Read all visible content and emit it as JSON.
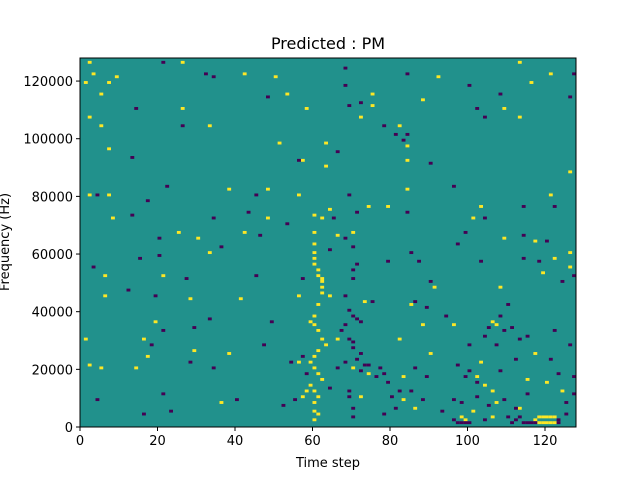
{
  "chart_data": {
    "type": "heatmap",
    "title": "Predicted : PM",
    "xlabel": "Time step",
    "ylabel": "Frequency (Hz)",
    "xlim": [
      0,
      128
    ],
    "ylim": [
      0,
      128000
    ],
    "x_ticks": [
      0,
      20,
      40,
      60,
      80,
      100,
      120
    ],
    "y_ticks": [
      0,
      20000,
      40000,
      60000,
      80000,
      100000,
      120000
    ],
    "x_tick_labels": [
      "0",
      "20",
      "40",
      "60",
      "80",
      "100",
      "120"
    ],
    "y_tick_labels": [
      "0",
      "20000",
      "40000",
      "60000",
      "80000",
      "100000",
      "120000"
    ],
    "grid": false,
    "colors": {
      "background": "#21918c",
      "high": "#fde725",
      "low": "#440154"
    },
    "cell_size": [
      1,
      1000
    ],
    "cells_high": [
      [
        2,
        126000
      ],
      [
        3,
        122000
      ],
      [
        9,
        121000
      ],
      [
        26,
        126000
      ],
      [
        42,
        122000
      ],
      [
        50,
        121000
      ],
      [
        92,
        121000
      ],
      [
        113,
        126000
      ],
      [
        121,
        122000
      ],
      [
        1,
        119000
      ],
      [
        7,
        119000
      ],
      [
        116,
        119000
      ],
      [
        5,
        115000
      ],
      [
        53,
        115000
      ],
      [
        75,
        115000
      ],
      [
        26,
        110000
      ],
      [
        58,
        110000
      ],
      [
        75,
        111000
      ],
      [
        88,
        113000
      ],
      [
        109,
        110000
      ],
      [
        2,
        107000
      ],
      [
        5,
        104000
      ],
      [
        33,
        104000
      ],
      [
        72,
        107000
      ],
      [
        82,
        104000
      ],
      [
        113,
        107000
      ],
      [
        7,
        96000
      ],
      [
        51,
        98000
      ],
      [
        63,
        98000
      ],
      [
        84,
        97000
      ],
      [
        84,
        92000
      ],
      [
        57,
        92000
      ],
      [
        63,
        90000
      ],
      [
        126,
        88000
      ],
      [
        2,
        80000
      ],
      [
        7,
        80000
      ],
      [
        38,
        82000
      ],
      [
        48,
        82000
      ],
      [
        84,
        82000
      ],
      [
        56,
        80000
      ],
      [
        74,
        76000
      ],
      [
        79,
        76000
      ],
      [
        103,
        76000
      ],
      [
        121,
        80000
      ],
      [
        8,
        72000
      ],
      [
        48,
        72000
      ],
      [
        60,
        73000
      ],
      [
        62,
        72000
      ],
      [
        64,
        75000
      ],
      [
        101,
        72000
      ],
      [
        25,
        67000
      ],
      [
        30,
        65000
      ],
      [
        42,
        67000
      ],
      [
        60,
        67000
      ],
      [
        60,
        63000
      ],
      [
        60,
        60000
      ],
      [
        60,
        58000
      ],
      [
        66,
        66000
      ],
      [
        70,
        67000
      ],
      [
        109,
        65000
      ],
      [
        117,
        64000
      ],
      [
        33,
        60000
      ],
      [
        60,
        56000
      ],
      [
        62,
        50000
      ],
      [
        62,
        48000
      ],
      [
        126,
        60000
      ],
      [
        6,
        52000
      ],
      [
        21,
        52000
      ],
      [
        61,
        54000
      ],
      [
        61,
        52000
      ],
      [
        62,
        51000
      ],
      [
        62,
        46000
      ],
      [
        91,
        48000
      ],
      [
        108,
        48000
      ],
      [
        126,
        55000
      ],
      [
        119,
        53000
      ],
      [
        122,
        58000
      ],
      [
        6,
        45000
      ],
      [
        28,
        44000
      ],
      [
        41,
        44000
      ],
      [
        56,
        45000
      ],
      [
        64,
        45000
      ],
      [
        73,
        43000
      ],
      [
        61,
        42000
      ],
      [
        60,
        38000
      ],
      [
        59,
        36000
      ],
      [
        60,
        35000
      ],
      [
        61,
        33000
      ],
      [
        62,
        30000
      ],
      [
        63,
        28000
      ],
      [
        61,
        26000
      ],
      [
        60,
        24000
      ],
      [
        59,
        22000
      ],
      [
        60,
        20000
      ],
      [
        61,
        18000
      ],
      [
        62,
        16000
      ],
      [
        59,
        14000
      ],
      [
        60,
        12000
      ],
      [
        61,
        10000
      ],
      [
        60,
        8000
      ],
      [
        60,
        5000
      ],
      [
        61,
        4000
      ],
      [
        60,
        2000
      ],
      [
        58,
        12000
      ],
      [
        57,
        10000
      ],
      [
        19,
        36000
      ],
      [
        85,
        42000
      ],
      [
        88,
        35000
      ],
      [
        96,
        35000
      ],
      [
        106,
        36000
      ],
      [
        107,
        35000
      ],
      [
        1,
        30000
      ],
      [
        16,
        30000
      ],
      [
        29,
        26000
      ],
      [
        38,
        25000
      ],
      [
        66,
        30000
      ],
      [
        82,
        30000
      ],
      [
        90,
        25000
      ],
      [
        103,
        22000
      ],
      [
        117,
        25000
      ],
      [
        17,
        24000
      ],
      [
        2,
        21000
      ],
      [
        5,
        20000
      ],
      [
        14,
        20000
      ],
      [
        56,
        22000
      ],
      [
        70,
        20000
      ],
      [
        74,
        18000
      ],
      [
        83,
        17000
      ],
      [
        102,
        17000
      ],
      [
        104,
        14000
      ],
      [
        106,
        12000
      ],
      [
        115,
        16000
      ],
      [
        120,
        15000
      ],
      [
        124,
        12000
      ],
      [
        36,
        8000
      ],
      [
        72,
        10000
      ],
      [
        83,
        9000
      ],
      [
        86,
        6000
      ],
      [
        101,
        5000
      ],
      [
        107,
        8000
      ],
      [
        113,
        6000
      ],
      [
        98,
        3000
      ],
      [
        99,
        2000
      ],
      [
        106,
        3000
      ],
      [
        117,
        2000
      ],
      [
        118,
        1000
      ],
      [
        118,
        3000
      ],
      [
        119,
        1000
      ],
      [
        119,
        3000
      ],
      [
        120,
        1000
      ],
      [
        120,
        3000
      ],
      [
        121,
        1000
      ],
      [
        121,
        3000
      ],
      [
        122,
        1000
      ],
      [
        122,
        3000
      ]
    ],
    "cells_low": [
      [
        21,
        126000
      ],
      [
        32,
        122000
      ],
      [
        34,
        121000
      ],
      [
        68,
        124000
      ],
      [
        68,
        118000
      ],
      [
        84,
        122000
      ],
      [
        100,
        118000
      ],
      [
        127,
        122000
      ],
      [
        14,
        110000
      ],
      [
        48,
        114000
      ],
      [
        69,
        111000
      ],
      [
        72,
        112000
      ],
      [
        102,
        110000
      ],
      [
        108,
        115000
      ],
      [
        126,
        114000
      ],
      [
        26,
        104000
      ],
      [
        78,
        104000
      ],
      [
        81,
        101000
      ],
      [
        84,
        101000
      ],
      [
        104,
        107000
      ],
      [
        83,
        99000
      ],
      [
        66,
        95000
      ],
      [
        13,
        93000
      ],
      [
        56,
        92000
      ],
      [
        90,
        91000
      ],
      [
        4,
        80000
      ],
      [
        17,
        78000
      ],
      [
        22,
        83000
      ],
      [
        45,
        80000
      ],
      [
        69,
        80000
      ],
      [
        96,
        83000
      ],
      [
        13,
        73000
      ],
      [
        43,
        74000
      ],
      [
        71,
        74000
      ],
      [
        84,
        74000
      ],
      [
        114,
        76000
      ],
      [
        122,
        76000
      ],
      [
        34,
        72000
      ],
      [
        53,
        70000
      ],
      [
        65,
        72000
      ],
      [
        104,
        72000
      ],
      [
        114,
        66000
      ],
      [
        20,
        65000
      ],
      [
        68,
        65000
      ],
      [
        46,
        66000
      ],
      [
        99,
        67000
      ],
      [
        97,
        63000
      ],
      [
        120,
        64000
      ],
      [
        36,
        62000
      ],
      [
        64,
        61000
      ],
      [
        85,
        60000
      ],
      [
        70,
        62000
      ],
      [
        20,
        59000
      ],
      [
        15,
        58000
      ],
      [
        3,
        55000
      ],
      [
        71,
        56000
      ],
      [
        79,
        57000
      ],
      [
        87,
        57000
      ],
      [
        103,
        57000
      ],
      [
        114,
        58000
      ],
      [
        118,
        57000
      ],
      [
        27,
        51000
      ],
      [
        45,
        52000
      ],
      [
        57,
        51000
      ],
      [
        70,
        54000
      ],
      [
        70,
        51000
      ],
      [
        90,
        50000
      ],
      [
        127,
        52000
      ],
      [
        124,
        50000
      ],
      [
        12,
        47000
      ],
      [
        19,
        45000
      ],
      [
        68,
        45000
      ],
      [
        86,
        43000
      ],
      [
        89,
        41000
      ],
      [
        110,
        42000
      ],
      [
        108,
        38000
      ],
      [
        49,
        36000
      ],
      [
        33,
        37000
      ],
      [
        29,
        34000
      ],
      [
        21,
        33000
      ],
      [
        69,
        40000
      ],
      [
        70,
        38000
      ],
      [
        71,
        37000
      ],
      [
        72,
        36000
      ],
      [
        75,
        43000
      ],
      [
        94,
        38000
      ],
      [
        109,
        33000
      ],
      [
        104,
        31000
      ],
      [
        111,
        34000
      ],
      [
        18,
        28000
      ],
      [
        47,
        28000
      ],
      [
        68,
        35000
      ],
      [
        67,
        33000
      ],
      [
        69,
        30000
      ],
      [
        70,
        29000
      ],
      [
        70,
        27000
      ],
      [
        72,
        25000
      ],
      [
        71,
        23000
      ],
      [
        73,
        21000
      ],
      [
        72,
        19000
      ],
      [
        74,
        21000
      ],
      [
        76,
        17000
      ],
      [
        78,
        18000
      ],
      [
        79,
        15000
      ],
      [
        100,
        28000
      ],
      [
        105,
        34000
      ],
      [
        115,
        31000
      ],
      [
        122,
        33000
      ],
      [
        126,
        28000
      ],
      [
        28,
        22000
      ],
      [
        34,
        20000
      ],
      [
        58,
        18000
      ],
      [
        57,
        24000
      ],
      [
        54,
        22000
      ],
      [
        68,
        22000
      ],
      [
        66,
        20000
      ],
      [
        77,
        20000
      ],
      [
        86,
        20000
      ],
      [
        89,
        17000
      ],
      [
        97,
        21000
      ],
      [
        100,
        19000
      ],
      [
        99,
        17000
      ],
      [
        102,
        15000
      ],
      [
        108,
        19000
      ],
      [
        112,
        23000
      ],
      [
        123,
        18000
      ],
      [
        127,
        17000
      ],
      [
        121,
        23000
      ],
      [
        107,
        28000
      ],
      [
        113,
        30000
      ],
      [
        4,
        9000
      ],
      [
        21,
        11000
      ],
      [
        40,
        9000
      ],
      [
        52,
        7000
      ],
      [
        55,
        9000
      ],
      [
        64,
        13000
      ],
      [
        69,
        12000
      ],
      [
        69,
        10000
      ],
      [
        80,
        10000
      ],
      [
        82,
        12000
      ],
      [
        85,
        12000
      ],
      [
        88,
        9000
      ],
      [
        96,
        9000
      ],
      [
        98,
        8000
      ],
      [
        102,
        10000
      ],
      [
        105,
        7000
      ],
      [
        109,
        9000
      ],
      [
        112,
        6000
      ],
      [
        115,
        11000
      ],
      [
        125,
        8000
      ],
      [
        127,
        11000
      ],
      [
        16,
        4000
      ],
      [
        23,
        5000
      ],
      [
        70,
        6000
      ],
      [
        70,
        3000
      ],
      [
        78,
        4000
      ],
      [
        81,
        6000
      ],
      [
        93,
        5000
      ],
      [
        96,
        2000
      ],
      [
        97,
        1000
      ],
      [
        98,
        1000
      ],
      [
        99,
        1000
      ],
      [
        100,
        1000
      ],
      [
        104,
        2000
      ],
      [
        110,
        3000
      ],
      [
        111,
        1000
      ],
      [
        112,
        2000
      ],
      [
        113,
        3000
      ],
      [
        114,
        1000
      ],
      [
        115,
        1000
      ],
      [
        116,
        1000
      ],
      [
        117,
        1000
      ],
      [
        123,
        1000
      ],
      [
        123,
        2000
      ],
      [
        125,
        4000
      ]
    ]
  }
}
